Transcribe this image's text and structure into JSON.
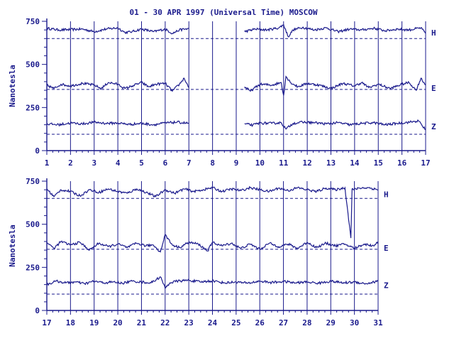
{
  "title": "01 - 30 APR 1997 (Universal Time) MOSCOW",
  "colors": {
    "ink": "#1a1a8c",
    "background": "#ffffff"
  },
  "chart_data": [
    {
      "type": "line",
      "panel": "top",
      "ylabel": "Nanotesla",
      "ylim": [
        0,
        750
      ],
      "yticks": [
        0,
        250,
        500,
        750
      ],
      "xlim": [
        1,
        17
      ],
      "xticks": [
        1,
        2,
        3,
        4,
        5,
        6,
        7,
        8,
        9,
        10,
        11,
        12,
        13,
        14,
        15,
        16,
        17
      ],
      "grid": "vertical lines at each day",
      "data_gaps": [
        [
          7,
          9.35
        ]
      ],
      "series": [
        {
          "name": "H",
          "baseline": 650,
          "x": [
            1,
            1.5,
            2,
            2.5,
            3,
            3.5,
            4,
            4.3,
            4.6,
            5,
            5.5,
            6,
            6.3,
            6.6,
            7,
            9.35,
            9.8,
            10.3,
            10.8,
            11.0,
            11.2,
            11.4,
            11.8,
            12.3,
            12.8,
            13.3,
            13.8,
            14.3,
            14.8,
            15.3,
            15.8,
            16.3,
            16.8,
            17
          ],
          "y": [
            710,
            700,
            702,
            705,
            690,
            705,
            712,
            685,
            690,
            705,
            690,
            705,
            680,
            700,
            708,
            690,
            705,
            700,
            712,
            730,
            660,
            700,
            715,
            700,
            712,
            690,
            705,
            700,
            710,
            695,
            705,
            700,
            712,
            680
          ]
        },
        {
          "name": "E",
          "baseline": 355,
          "x": [
            1,
            1.3,
            1.6,
            2,
            2.5,
            3,
            3.3,
            3.6,
            4,
            4.3,
            4.6,
            5,
            5.3,
            5.6,
            6,
            6.3,
            6.6,
            6.8,
            7,
            9.35,
            9.6,
            10,
            10.5,
            10.9,
            11.0,
            11.1,
            11.3,
            11.6,
            12,
            12.5,
            13,
            13.5,
            14,
            14.3,
            14.6,
            15,
            15.5,
            16,
            16.3,
            16.6,
            16.8,
            17
          ],
          "y": [
            380,
            360,
            385,
            375,
            390,
            380,
            360,
            395,
            385,
            360,
            375,
            395,
            370,
            385,
            390,
            345,
            385,
            420,
            365,
            370,
            345,
            385,
            380,
            395,
            320,
            430,
            395,
            370,
            390,
            380,
            360,
            390,
            375,
            395,
            365,
            385,
            360,
            385,
            395,
            350,
            420,
            380
          ]
        },
        {
          "name": "Z",
          "baseline": 95,
          "x": [
            1,
            1.5,
            2,
            2.5,
            3,
            3.5,
            4,
            4.5,
            5,
            5.5,
            6,
            6.5,
            7,
            9.35,
            9.7,
            10,
            10.5,
            10.9,
            11.1,
            11.4,
            11.8,
            12.3,
            12.8,
            13.3,
            13.8,
            14.3,
            14.8,
            15.3,
            15.8,
            16.3,
            16.7,
            17
          ],
          "y": [
            155,
            150,
            160,
            155,
            165,
            158,
            160,
            152,
            158,
            150,
            160,
            165,
            158,
            155,
            148,
            160,
            158,
            162,
            125,
            158,
            165,
            162,
            155,
            162,
            150,
            158,
            162,
            150,
            158,
            165,
            172,
            120
          ]
        }
      ]
    },
    {
      "type": "line",
      "panel": "bottom",
      "ylabel": "Nanotesla",
      "ylim": [
        0,
        750
      ],
      "yticks": [
        0,
        250,
        500,
        750
      ],
      "xlim": [
        17,
        31
      ],
      "xticks": [
        17,
        18,
        19,
        20,
        21,
        22,
        23,
        24,
        25,
        26,
        27,
        28,
        29,
        30,
        31
      ],
      "grid": "vertical lines at each day",
      "data_gaps": [],
      "series": [
        {
          "name": "H",
          "baseline": 650,
          "x": [
            17,
            17.3,
            17.6,
            18,
            18.4,
            18.8,
            19.2,
            19.6,
            20,
            20.4,
            20.8,
            21.2,
            21.6,
            22,
            22.4,
            22.8,
            23.2,
            23.6,
            24,
            24.4,
            24.8,
            25.2,
            25.6,
            26,
            26.4,
            26.8,
            27.2,
            27.6,
            28,
            28.4,
            28.8,
            29.2,
            29.6,
            29.85,
            29.9,
            29.95,
            30.2,
            30.6,
            31
          ],
          "y": [
            705,
            660,
            700,
            690,
            665,
            700,
            685,
            705,
            690,
            680,
            705,
            685,
            660,
            700,
            680,
            705,
            690,
            700,
            712,
            690,
            705,
            695,
            712,
            700,
            690,
            710,
            695,
            712,
            700,
            690,
            710,
            700,
            712,
            420,
            705,
            700,
            710,
            712,
            700
          ]
        },
        {
          "name": "E",
          "baseline": 355,
          "x": [
            17,
            17.3,
            17.6,
            18,
            18.4,
            18.8,
            19.2,
            19.6,
            20,
            20.4,
            20.8,
            21.2,
            21.5,
            21.8,
            22.0,
            22.3,
            22.6,
            23,
            23.4,
            23.8,
            24,
            24.4,
            24.8,
            25.2,
            25.6,
            26,
            26.4,
            26.8,
            27.2,
            27.6,
            28,
            28.4,
            28.8,
            29.2,
            29.6,
            30,
            30.4,
            30.8,
            31
          ],
          "y": [
            395,
            360,
            400,
            380,
            395,
            350,
            390,
            370,
            385,
            365,
            390,
            375,
            380,
            340,
            440,
            380,
            365,
            395,
            385,
            345,
            395,
            375,
            390,
            360,
            385,
            355,
            390,
            370,
            385,
            360,
            395,
            365,
            390,
            375,
            385,
            360,
            385,
            375,
            400
          ]
        },
        {
          "name": "Z",
          "baseline": 95,
          "x": [
            17,
            17.4,
            17.8,
            18.2,
            18.6,
            19,
            19.4,
            19.8,
            20.2,
            20.6,
            21,
            21.4,
            21.8,
            22.0,
            22.2,
            22.5,
            23,
            23.5,
            24,
            24.5,
            25,
            25.5,
            26,
            26.5,
            27,
            27.5,
            28,
            28.5,
            29,
            29.5,
            30,
            30.5,
            31
          ],
          "y": [
            150,
            170,
            160,
            165,
            155,
            170,
            160,
            165,
            158,
            170,
            165,
            160,
            195,
            130,
            160,
            170,
            175,
            165,
            172,
            160,
            165,
            158,
            170,
            162,
            168,
            160,
            165,
            158,
            170,
            160,
            165,
            155,
            170
          ]
        }
      ]
    }
  ]
}
